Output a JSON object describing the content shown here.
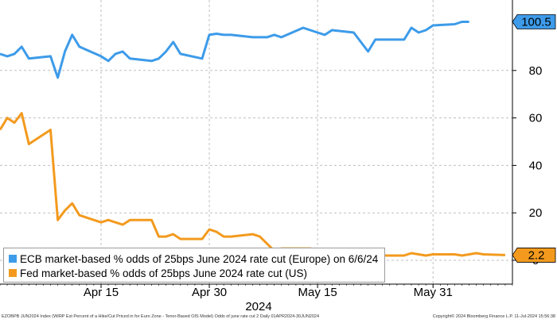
{
  "chart_data": {
    "type": "line",
    "x_axis": {
      "tick_labels": [
        "Apr 15",
        "Apr 30",
        "May 15",
        "May 31"
      ],
      "year_label": "2024",
      "range": [
        "2024-04-01",
        "2024-06-11"
      ]
    },
    "y_axis": {
      "side": "right",
      "range": [
        0,
        110
      ],
      "ticks": [
        0,
        20,
        40,
        60,
        80
      ],
      "grid": true
    },
    "legend_position": "bottom-left",
    "series": [
      {
        "name": "ECB market-based % odds of 25bps June 2024 rate cut (Europe) on 6/6/24",
        "color": "#3d9be9",
        "last_value_label": "100.5",
        "x": [
          "2024-04-01",
          "2024-04-02",
          "2024-04-03",
          "2024-04-04",
          "2024-04-05",
          "2024-04-08",
          "2024-04-09",
          "2024-04-10",
          "2024-04-11",
          "2024-04-12",
          "2024-04-15",
          "2024-04-16",
          "2024-04-17",
          "2024-04-18",
          "2024-04-19",
          "2024-04-22",
          "2024-04-23",
          "2024-04-24",
          "2024-04-25",
          "2024-04-26",
          "2024-04-29",
          "2024-04-30",
          "2024-05-01",
          "2024-05-02",
          "2024-05-03",
          "2024-05-06",
          "2024-05-07",
          "2024-05-08",
          "2024-05-09",
          "2024-05-10",
          "2024-05-13",
          "2024-05-14",
          "2024-05-15",
          "2024-05-16",
          "2024-05-17",
          "2024-05-20",
          "2024-05-21",
          "2024-05-22",
          "2024-05-23",
          "2024-05-24",
          "2024-05-27",
          "2024-05-28",
          "2024-05-29",
          "2024-05-30",
          "2024-05-31",
          "2024-06-03",
          "2024-06-04",
          "2024-06-05"
        ],
        "values": [
          87,
          86,
          87,
          90,
          85,
          86,
          77,
          88,
          95,
          90,
          86,
          84,
          87,
          88,
          85,
          84,
          85,
          88,
          92,
          87,
          85,
          95,
          95.5,
          95,
          95,
          94,
          94,
          94,
          95,
          94,
          98,
          97,
          96,
          95,
          97,
          96,
          92,
          88,
          93,
          93,
          93,
          98,
          96,
          97,
          99,
          99.5,
          100.5,
          100.5
        ]
      },
      {
        "name": "Fed market-based % odds of 25bps June 2024 rate cut (US)",
        "color": "#f39a1e",
        "last_value_label": "2.2",
        "x": [
          "2024-04-01",
          "2024-04-02",
          "2024-04-03",
          "2024-04-04",
          "2024-04-05",
          "2024-04-08",
          "2024-04-09",
          "2024-04-10",
          "2024-04-11",
          "2024-04-12",
          "2024-04-15",
          "2024-04-16",
          "2024-04-17",
          "2024-04-18",
          "2024-04-19",
          "2024-04-22",
          "2024-04-23",
          "2024-04-24",
          "2024-04-25",
          "2024-04-26",
          "2024-04-29",
          "2024-04-30",
          "2024-05-01",
          "2024-05-02",
          "2024-05-03",
          "2024-05-06",
          "2024-05-07",
          "2024-05-08",
          "2024-05-09",
          "2024-05-10",
          "2024-05-13",
          "2024-05-14",
          "2024-05-15",
          "2024-05-16",
          "2024-05-17",
          "2024-05-20",
          "2024-05-21",
          "2024-05-22",
          "2024-05-23",
          "2024-05-24",
          "2024-05-27",
          "2024-05-28",
          "2024-05-29",
          "2024-05-30",
          "2024-05-31",
          "2024-06-03",
          "2024-06-04",
          "2024-06-05",
          "2024-06-06",
          "2024-06-07",
          "2024-06-10"
        ],
        "values": [
          55,
          60,
          58,
          62,
          49,
          55,
          17,
          21,
          24,
          19,
          16,
          17,
          16,
          15,
          17,
          17,
          10,
          10,
          11,
          9,
          9,
          13,
          12,
          10,
          10,
          11,
          10,
          7,
          4,
          5,
          5,
          5,
          4,
          3,
          3,
          2,
          2,
          2,
          3,
          2,
          2,
          3,
          2.5,
          2,
          2.5,
          2.5,
          2,
          2.5,
          3,
          2.5,
          2.2
        ]
      }
    ]
  },
  "footer": {
    "left": "EZOBPB JUN2024 Index (WIRP Est Percent of a Hike/Cut Priced in for Euro Zone - Tenor-Based OIS Model) Odds of june rate cut 2  Daily 01APR2024-30JUN2024",
    "right": "Copyright© 2024 Bloomberg Finance L.P.     11-Jul-2024 15:56:38"
  }
}
